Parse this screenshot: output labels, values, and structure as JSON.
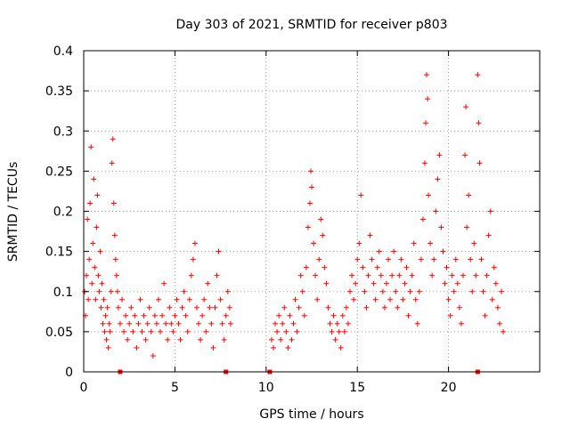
{
  "chart_data": {
    "type": "scatter",
    "title": "Day 303 of 2021, SRMTID for receiver p803",
    "xlabel": "GPS time / hours",
    "ylabel": "SRMTID / TECUs",
    "xlim": [
      0,
      25
    ],
    "ylim": [
      0,
      0.4
    ],
    "x_ticks": [
      0,
      5,
      10,
      15,
      20
    ],
    "x_tick_labels": [
      "0",
      "5",
      "10",
      "15",
      "20"
    ],
    "y_ticks": [
      0,
      0.05,
      0.1,
      0.15,
      0.2,
      0.25,
      0.3,
      0.35,
      0.4
    ],
    "y_tick_labels": [
      "0",
      "0.05",
      "0.1",
      "0.15",
      "0.2",
      "0.25",
      "0.3",
      "0.35",
      "0.4"
    ],
    "grid": true,
    "marker": "+",
    "marker_color": "#ff0000",
    "series": [
      {
        "name": "SRMTID",
        "points": [
          [
            0.05,
            0.1
          ],
          [
            0.1,
            0.07
          ],
          [
            0.15,
            0.12
          ],
          [
            0.2,
            0.19
          ],
          [
            0.25,
            0.09
          ],
          [
            0.3,
            0.14
          ],
          [
            0.35,
            0.21
          ],
          [
            0.4,
            0.28
          ],
          [
            0.45,
            0.11
          ],
          [
            0.5,
            0.16
          ],
          [
            0.55,
            0.24
          ],
          [
            0.6,
            0.13
          ],
          [
            0.65,
            0.09
          ],
          [
            0.7,
            0.18
          ],
          [
            0.75,
            0.22
          ],
          [
            0.8,
            0.12
          ],
          [
            0.85,
            0.1
          ],
          [
            0.9,
            0.15
          ],
          [
            0.95,
            0.08
          ],
          [
            1.0,
            0.11
          ],
          [
            1.05,
            0.06
          ],
          [
            1.1,
            0.09
          ],
          [
            1.15,
            0.05
          ],
          [
            1.2,
            0.07
          ],
          [
            1.25,
            0.04
          ],
          [
            1.3,
            0.08
          ],
          [
            1.35,
            0.03
          ],
          [
            1.4,
            0.06
          ],
          [
            1.45,
            0.05
          ],
          [
            1.5,
            0.1
          ],
          [
            1.55,
            0.26
          ],
          [
            1.6,
            0.29
          ],
          [
            1.65,
            0.21
          ],
          [
            1.7,
            0.17
          ],
          [
            1.75,
            0.14
          ],
          [
            1.8,
            0.12
          ],
          [
            1.85,
            0.1
          ],
          [
            1.9,
            0.08
          ],
          [
            2.0,
            0.06
          ],
          [
            2.1,
            0.09
          ],
          [
            2.2,
            0.05
          ],
          [
            2.3,
            0.07
          ],
          [
            2.4,
            0.04
          ],
          [
            2.5,
            0.06
          ],
          [
            2.6,
            0.08
          ],
          [
            2.7,
            0.05
          ],
          [
            2.8,
            0.07
          ],
          [
            2.9,
            0.03
          ],
          [
            3.0,
            0.06
          ],
          [
            3.1,
            0.09
          ],
          [
            3.2,
            0.05
          ],
          [
            3.3,
            0.07
          ],
          [
            3.4,
            0.04
          ],
          [
            3.5,
            0.06
          ],
          [
            3.6,
            0.08
          ],
          [
            3.7,
            0.05
          ],
          [
            3.8,
            0.02
          ],
          [
            3.9,
            0.07
          ],
          [
            4.0,
            0.06
          ],
          [
            4.1,
            0.09
          ],
          [
            4.2,
            0.05
          ],
          [
            4.3,
            0.07
          ],
          [
            4.4,
            0.11
          ],
          [
            4.5,
            0.06
          ],
          [
            4.6,
            0.04
          ],
          [
            4.7,
            0.08
          ],
          [
            4.8,
            0.06
          ],
          [
            4.9,
            0.05
          ],
          [
            5.0,
            0.07
          ],
          [
            5.1,
            0.09
          ],
          [
            5.2,
            0.06
          ],
          [
            5.3,
            0.04
          ],
          [
            5.4,
            0.08
          ],
          [
            5.5,
            0.1
          ],
          [
            5.6,
            0.07
          ],
          [
            5.7,
            0.05
          ],
          [
            5.8,
            0.09
          ],
          [
            5.9,
            0.12
          ],
          [
            6.0,
            0.14
          ],
          [
            6.1,
            0.16
          ],
          [
            6.2,
            0.08
          ],
          [
            6.3,
            0.06
          ],
          [
            6.4,
            0.04
          ],
          [
            6.5,
            0.07
          ],
          [
            6.6,
            0.09
          ],
          [
            6.7,
            0.05
          ],
          [
            6.8,
            0.11
          ],
          [
            6.9,
            0.08
          ],
          [
            7.0,
            0.06
          ],
          [
            7.1,
            0.03
          ],
          [
            7.2,
            0.08
          ],
          [
            7.3,
            0.12
          ],
          [
            7.4,
            0.15
          ],
          [
            7.5,
            0.09
          ],
          [
            7.6,
            0.06
          ],
          [
            7.7,
            0.04
          ],
          [
            7.8,
            0.07
          ],
          [
            7.9,
            0.1
          ],
          [
            8.0,
            0.08
          ],
          [
            8.05,
            0.06
          ],
          [
            10.3,
            0.04
          ],
          [
            10.4,
            0.03
          ],
          [
            10.5,
            0.06
          ],
          [
            10.6,
            0.05
          ],
          [
            10.7,
            0.07
          ],
          [
            10.8,
            0.04
          ],
          [
            10.9,
            0.06
          ],
          [
            11.0,
            0.08
          ],
          [
            11.1,
            0.05
          ],
          [
            11.2,
            0.03
          ],
          [
            11.3,
            0.07
          ],
          [
            11.4,
            0.04
          ],
          [
            11.5,
            0.06
          ],
          [
            11.6,
            0.09
          ],
          [
            11.7,
            0.05
          ],
          [
            11.8,
            0.08
          ],
          [
            11.9,
            0.12
          ],
          [
            12.0,
            0.1
          ],
          [
            12.1,
            0.07
          ],
          [
            12.2,
            0.13
          ],
          [
            12.3,
            0.18
          ],
          [
            12.4,
            0.21
          ],
          [
            12.45,
            0.25
          ],
          [
            12.5,
            0.23
          ],
          [
            12.6,
            0.16
          ],
          [
            12.7,
            0.12
          ],
          [
            12.8,
            0.09
          ],
          [
            12.9,
            0.14
          ],
          [
            13.0,
            0.19
          ],
          [
            13.1,
            0.17
          ],
          [
            13.2,
            0.13
          ],
          [
            13.3,
            0.11
          ],
          [
            13.4,
            0.08
          ],
          [
            13.5,
            0.06
          ],
          [
            13.6,
            0.05
          ],
          [
            13.7,
            0.07
          ],
          [
            13.8,
            0.04
          ],
          [
            13.9,
            0.06
          ],
          [
            14.0,
            0.05
          ],
          [
            14.1,
            0.03
          ],
          [
            14.2,
            0.07
          ],
          [
            14.3,
            0.05
          ],
          [
            14.4,
            0.08
          ],
          [
            14.5,
            0.06
          ],
          [
            14.6,
            0.1
          ],
          [
            14.7,
            0.12
          ],
          [
            14.8,
            0.09
          ],
          [
            14.9,
            0.11
          ],
          [
            15.0,
            0.14
          ],
          [
            15.1,
            0.16
          ],
          [
            15.2,
            0.22
          ],
          [
            15.3,
            0.13
          ],
          [
            15.4,
            0.1
          ],
          [
            15.5,
            0.08
          ],
          [
            15.6,
            0.12
          ],
          [
            15.7,
            0.17
          ],
          [
            15.8,
            0.14
          ],
          [
            15.9,
            0.11
          ],
          [
            16.0,
            0.09
          ],
          [
            16.1,
            0.13
          ],
          [
            16.2,
            0.15
          ],
          [
            16.3,
            0.12
          ],
          [
            16.4,
            0.1
          ],
          [
            16.5,
            0.08
          ],
          [
            16.6,
            0.11
          ],
          [
            16.7,
            0.14
          ],
          [
            16.8,
            0.09
          ],
          [
            16.9,
            0.12
          ],
          [
            17.0,
            0.15
          ],
          [
            17.1,
            0.1
          ],
          [
            17.2,
            0.08
          ],
          [
            17.3,
            0.12
          ],
          [
            17.4,
            0.14
          ],
          [
            17.5,
            0.09
          ],
          [
            17.6,
            0.11
          ],
          [
            17.7,
            0.13
          ],
          [
            17.8,
            0.07
          ],
          [
            17.9,
            0.1
          ],
          [
            18.0,
            0.12
          ],
          [
            18.1,
            0.16
          ],
          [
            18.2,
            0.09
          ],
          [
            18.3,
            0.06
          ],
          [
            18.4,
            0.1
          ],
          [
            18.5,
            0.14
          ],
          [
            18.6,
            0.19
          ],
          [
            18.7,
            0.26
          ],
          [
            18.75,
            0.31
          ],
          [
            18.8,
            0.37
          ],
          [
            18.85,
            0.34
          ],
          [
            18.9,
            0.22
          ],
          [
            19.0,
            0.16
          ],
          [
            19.1,
            0.12
          ],
          [
            19.2,
            0.14
          ],
          [
            19.3,
            0.2
          ],
          [
            19.4,
            0.24
          ],
          [
            19.5,
            0.27
          ],
          [
            19.6,
            0.18
          ],
          [
            19.7,
            0.15
          ],
          [
            19.8,
            0.11
          ],
          [
            19.9,
            0.13
          ],
          [
            20.0,
            0.09
          ],
          [
            20.1,
            0.07
          ],
          [
            20.2,
            0.12
          ],
          [
            20.3,
            0.1
          ],
          [
            20.4,
            0.14
          ],
          [
            20.5,
            0.11
          ],
          [
            20.6,
            0.08
          ],
          [
            20.7,
            0.06
          ],
          [
            20.8,
            0.12
          ],
          [
            20.9,
            0.27
          ],
          [
            20.95,
            0.33
          ],
          [
            21.0,
            0.18
          ],
          [
            21.1,
            0.22
          ],
          [
            21.2,
            0.14
          ],
          [
            21.3,
            0.1
          ],
          [
            21.4,
            0.16
          ],
          [
            21.5,
            0.12
          ],
          [
            21.6,
            0.37
          ],
          [
            21.65,
            0.31
          ],
          [
            21.7,
            0.26
          ],
          [
            21.8,
            0.14
          ],
          [
            21.9,
            0.1
          ],
          [
            22.0,
            0.07
          ],
          [
            22.1,
            0.12
          ],
          [
            22.2,
            0.17
          ],
          [
            22.3,
            0.2
          ],
          [
            22.4,
            0.09
          ],
          [
            22.5,
            0.13
          ],
          [
            22.6,
            0.11
          ],
          [
            22.7,
            0.08
          ],
          [
            22.8,
            0.06
          ],
          [
            22.9,
            0.1
          ],
          [
            23.0,
            0.05
          ]
        ]
      }
    ],
    "markers_on_x_axis": [
      2,
      7.8,
      10.2,
      21.6
    ]
  }
}
